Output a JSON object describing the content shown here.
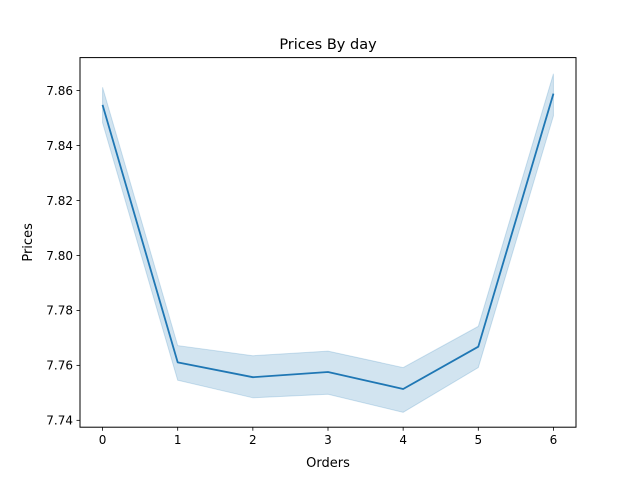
{
  "chart_data": {
    "type": "line",
    "title": "Prices By day",
    "xlabel": "Orders",
    "ylabel": "Prices",
    "x": [
      0,
      1,
      2,
      3,
      4,
      5,
      6
    ],
    "xlim": [
      -0.3,
      6.3
    ],
    "ylim": [
      7.7375,
      7.872
    ],
    "xticks": [
      0,
      1,
      2,
      3,
      4,
      5,
      6
    ],
    "yticks": [
      7.74,
      7.76,
      7.78,
      7.8,
      7.82,
      7.84,
      7.86
    ],
    "ytick_labels": [
      "7.74",
      "7.76",
      "7.78",
      "7.80",
      "7.82",
      "7.84",
      "7.86"
    ],
    "grid": false,
    "series": [
      {
        "values": [
          7.8548,
          7.7611,
          7.7557,
          7.7576,
          7.7514,
          7.7668,
          7.8589
        ],
        "ci_upper": [
          7.8612,
          7.7672,
          7.7635,
          7.7652,
          7.7592,
          7.7742,
          7.8661
        ],
        "ci_lower": [
          7.8483,
          7.7546,
          7.7482,
          7.7495,
          7.7429,
          7.7592,
          7.8508
        ],
        "color": "#1f77b4",
        "ci_color": "#1f77b4"
      }
    ]
  }
}
